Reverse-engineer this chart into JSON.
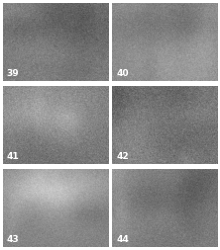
{
  "panel_numbers": [
    "39",
    "40",
    "41",
    "42",
    "43",
    "44"
  ],
  "grid_rows": 3,
  "grid_cols": 2,
  "label_color": "#ffffff",
  "label_fontsize": 6.5,
  "label_fontweight": "bold",
  "background_color": "#ffffff",
  "divider_color": "#ffffff",
  "divider_thickness": 2,
  "figsize": [
    2.2,
    2.5
  ],
  "dpi": 100,
  "panel_gray_means": [
    128,
    138,
    120,
    118,
    130,
    135
  ],
  "panel_gray_std": [
    22,
    20,
    25,
    28,
    18,
    20
  ]
}
